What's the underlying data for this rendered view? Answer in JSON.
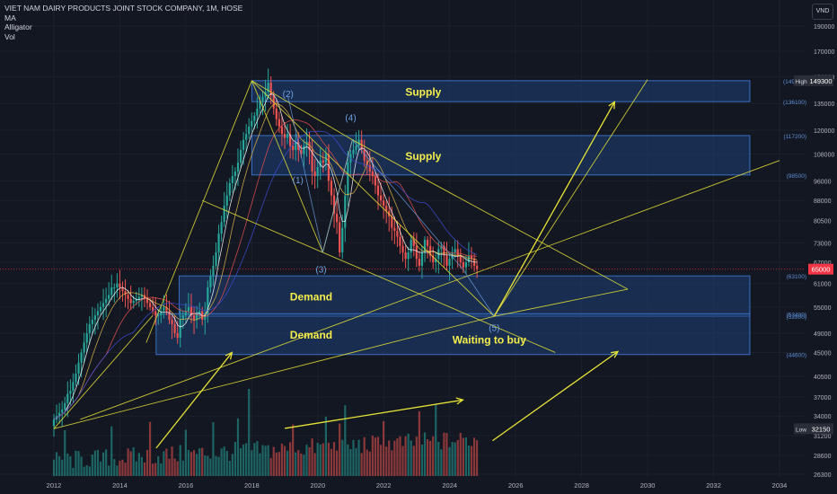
{
  "header": {
    "title": "VIET NAM DAIRY PRODUCTS JOINT STOCK COMPANY, 1M, HOSE",
    "indicators": [
      "MA",
      "Alligator",
      "Vol"
    ],
    "currency": "VND"
  },
  "colors": {
    "background": "#131722",
    "zone_fill": "#1e3f75",
    "zone_border": "#3b6fc4",
    "trend_line": "#e8e336",
    "up_candle": "#26a69a",
    "down_candle": "#ef5350",
    "wave_label": "#6fa0e6",
    "zone_label": "#f5ee4b",
    "price_tag": "#f23645"
  },
  "chart_data": {
    "type": "candlestick",
    "title": "VIET NAM DAIRY PRODUCTS JOINT STOCK COMPANY, 1M, HOSE",
    "x_ticks": [
      "2012",
      "2014",
      "2016",
      "2018",
      "2020",
      "2022",
      "2024",
      "2026",
      "2028",
      "2030",
      "2032",
      "2034"
    ],
    "x_range": [
      2011.85,
      2035.0
    ],
    "y_scale": "log",
    "y_ticks": [
      26300,
      28600,
      31200,
      34000,
      37000,
      40500,
      45000,
      49000,
      55000,
      61000,
      67000,
      73000,
      80500,
      88000,
      96000,
      108000,
      120000,
      135000,
      152000,
      170000,
      190000
    ],
    "y_range": [
      26300,
      205000
    ],
    "zones": [
      {
        "label": "Supply",
        "top": 149300,
        "bottom": 136100
      },
      {
        "label": "Supply",
        "top": 117200,
        "bottom": 98500
      },
      {
        "label": "Demand",
        "top": 63100,
        "bottom": 52800
      },
      {
        "label": "Demand",
        "top": 53400,
        "bottom": 44600
      }
    ],
    "price_axis_labels": [
      {
        "text": "(149300)",
        "value": 149300
      },
      {
        "text": "(136100)",
        "value": 136100
      },
      {
        "text": "(117200)",
        "value": 117200
      },
      {
        "text": "(98500)",
        "value": 98500
      },
      {
        "text": "(63100)",
        "value": 63100
      },
      {
        "text": "(53400)",
        "value": 53400
      },
      {
        "text": "(52800)",
        "value": 52800
      },
      {
        "text": "(44600)",
        "value": 44600
      }
    ],
    "markers": [
      {
        "label": "High",
        "value": 149300,
        "text": "149300"
      },
      {
        "label": "Low",
        "value": 32150,
        "text": "32150"
      },
      {
        "label": "Last",
        "value": 65000,
        "text": "65000"
      }
    ],
    "wave_labels": [
      {
        "text": "(1)",
        "x": 2019.4,
        "y": 95000
      },
      {
        "text": "(2)",
        "x": 2019.1,
        "y": 139000
      },
      {
        "text": "(3)",
        "x": 2020.1,
        "y": 64000
      },
      {
        "text": "(4)",
        "x": 2021.0,
        "y": 125000
      },
      {
        "text": "(5)",
        "x": 2025.35,
        "y": 49500
      }
    ],
    "annotation": "Waiting to buy",
    "close_series": {
      "start": 2012.0,
      "step": 0.0833,
      "values": [
        33500,
        34000,
        34500,
        35000,
        36000,
        37500,
        38000,
        39500,
        41000,
        43000,
        45000,
        47000,
        49000,
        51000,
        52000,
        53000,
        54000,
        55000,
        56000,
        57000,
        58000,
        60000,
        60000,
        61000,
        60000,
        59000,
        58000,
        57000,
        56000,
        56500,
        57000,
        57500,
        58000,
        57000,
        56000,
        55000,
        54000,
        53000,
        53000,
        54000,
        55000,
        54000,
        52000,
        51000,
        49000,
        48000,
        52000,
        53000,
        54000,
        55000,
        53000,
        52000,
        53500,
        54000,
        52000,
        53000,
        60000,
        63000,
        66000,
        70000,
        76000,
        80000,
        86000,
        90000,
        95000,
        98000,
        100000,
        104000,
        110000,
        115000,
        118000,
        122000,
        125000,
        128000,
        132000,
        136000,
        139000,
        142000,
        148000,
        140000,
        132000,
        126000,
        122000,
        118000,
        116000,
        118000,
        112000,
        110000,
        114000,
        110000,
        108000,
        112000,
        114000,
        110000,
        100000,
        98000,
        102000,
        105000,
        104000,
        108000,
        96000,
        90000,
        83000,
        80000,
        70000,
        78000,
        90000,
        104000,
        108000,
        110000,
        112000,
        115000,
        110000,
        105000,
        103000,
        100000,
        98000,
        94000,
        90000,
        88000,
        86000,
        84000,
        82000,
        78000,
        77000,
        75000,
        72000,
        70000,
        68000,
        70000,
        74000,
        72000,
        68000,
        66000,
        70000,
        74000,
        72000,
        69000,
        67000,
        68000,
        71000,
        72000,
        69000,
        66000,
        68000,
        70000,
        71000,
        69000,
        67000,
        65500,
        67000,
        69000,
        68000,
        66000,
        65000
      ]
    },
    "moving_averages": [
      {
        "period": 5,
        "color": "#ffffff"
      },
      {
        "period": 10,
        "color": "#e6b84a"
      },
      {
        "period": 20,
        "color": "#ef5350"
      },
      {
        "period": 30,
        "color": "#3d4fd6"
      }
    ]
  }
}
